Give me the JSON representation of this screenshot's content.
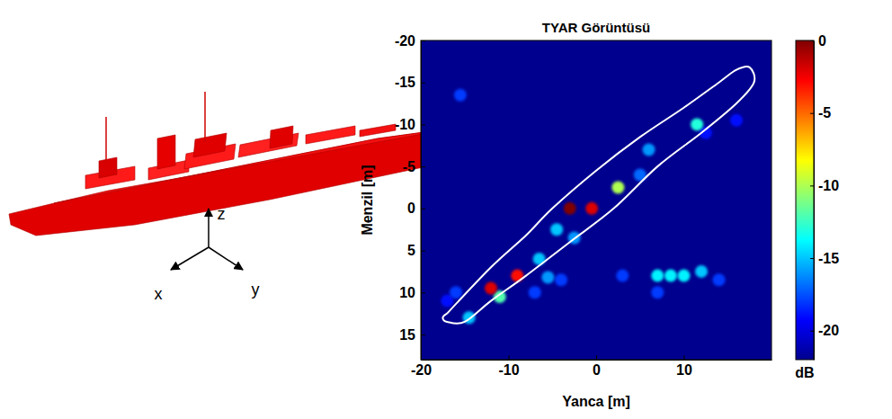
{
  "illustration": {
    "axis_labels": [
      "x",
      "y",
      "z"
    ]
  },
  "chart_data": {
    "type": "scatter",
    "title": "TYAR Görüntüsü",
    "x_label": "Yanca [m]",
    "y_label": "Menzil [m]",
    "xlim": [
      -20,
      20
    ],
    "ylim": [
      -20,
      18
    ],
    "xticks": [
      -20,
      -10,
      0,
      10
    ],
    "yticks": [
      -20,
      -15,
      -10,
      -5,
      0,
      5,
      10,
      15
    ],
    "x": [
      -17,
      -15.5,
      -16,
      16,
      12.5,
      14,
      -7,
      -4,
      3,
      7,
      5,
      6,
      -2.5,
      -4.5,
      -6.5,
      -5.5,
      -14.5,
      7,
      8.5,
      10,
      12,
      11.5,
      -11,
      2.5,
      -9,
      -12,
      -0.5,
      -3
    ],
    "y": [
      11,
      -13.5,
      10,
      -10.5,
      -9,
      8.5,
      10,
      8.5,
      8,
      10,
      -4,
      -7,
      3.5,
      2.5,
      6,
      8.2,
      13,
      8,
      8,
      8,
      7.5,
      -10,
      10.5,
      -2.5,
      8,
      9.5,
      0,
      0
    ],
    "values": [
      -19,
      -18,
      -18,
      -19,
      -19,
      -18,
      -18,
      -18,
      -18,
      -18,
      -17,
      -16,
      -16,
      -15,
      -15,
      -16,
      -15,
      -14,
      -14,
      -14,
      -15,
      -13,
      -12,
      -10,
      -3,
      -2,
      -2,
      0
    ],
    "outline": {
      "x": [
        -17,
        -12,
        -8,
        -5,
        0,
        5,
        10,
        14,
        16,
        17.5,
        18,
        16,
        12,
        7,
        2,
        -3,
        -8,
        -12,
        -15,
        -17,
        -17.5,
        -17
      ],
      "y": [
        12.5,
        7,
        3.2,
        0,
        -4.5,
        -8.5,
        -12,
        -15,
        -16.5,
        -16.8,
        -15,
        -12.5,
        -9,
        -5,
        0,
        4,
        8,
        11,
        13.5,
        13.5,
        13,
        12.5
      ]
    },
    "colorbar": {
      "range": [
        -22,
        0
      ],
      "ticks": [
        0,
        -5,
        -10,
        -15,
        -20
      ],
      "label": "dB"
    }
  }
}
